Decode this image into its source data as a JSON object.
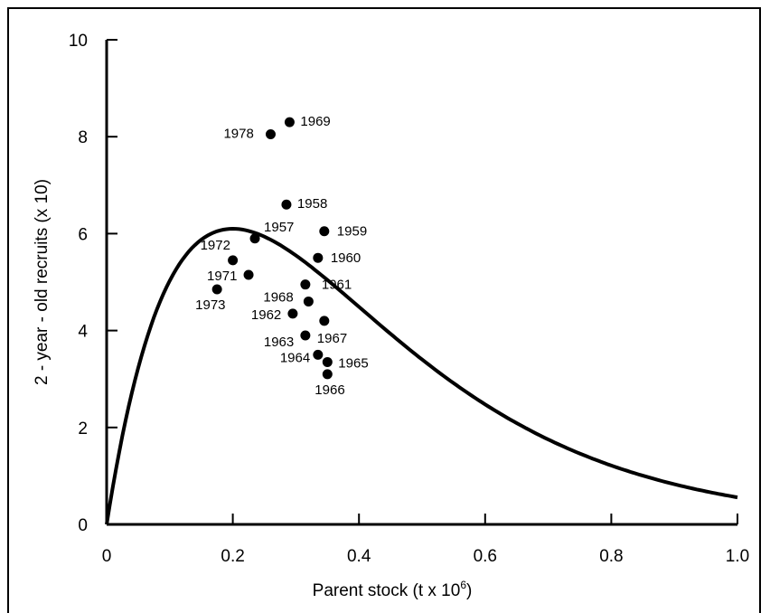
{
  "chart_data": {
    "type": "scatter",
    "xlabel": "Parent stock (t x 10",
    "xlabel_sup": "6",
    "xlabel_close": ")",
    "ylabel": "2 - year - old recruits (x 10)",
    "xlim": [
      0,
      1.0
    ],
    "ylim": [
      0,
      10
    ],
    "x_ticks": [
      "0",
      "0.2",
      "0.4",
      "0.6",
      "0.8",
      "1.0"
    ],
    "x_tick_values": [
      0,
      0.2,
      0.4,
      0.6,
      0.8,
      1.0
    ],
    "y_ticks": [
      "0",
      "2",
      "4",
      "6",
      "8",
      "10"
    ],
    "y_tick_values": [
      0,
      2,
      4,
      6,
      8,
      10
    ],
    "grid": false,
    "points": [
      {
        "label": "1978",
        "x": 0.26,
        "y": 8.05
      },
      {
        "label": "1969",
        "x": 0.29,
        "y": 8.3
      },
      {
        "label": "1958",
        "x": 0.285,
        "y": 6.6
      },
      {
        "label": "1957",
        "x": 0.235,
        "y": 5.9
      },
      {
        "label": "1959",
        "x": 0.345,
        "y": 6.05
      },
      {
        "label": "1972",
        "x": 0.2,
        "y": 5.45
      },
      {
        "label": "1960",
        "x": 0.335,
        "y": 5.5
      },
      {
        "label": "1971",
        "x": 0.225,
        "y": 5.15
      },
      {
        "label": "1961",
        "x": 0.315,
        "y": 4.95
      },
      {
        "label": "1973",
        "x": 0.175,
        "y": 4.85
      },
      {
        "label": "1968",
        "x": 0.32,
        "y": 4.6
      },
      {
        "label": "1962",
        "x": 0.295,
        "y": 4.35
      },
      {
        "label": "1967",
        "x": 0.345,
        "y": 4.2
      },
      {
        "label": "1963",
        "x": 0.315,
        "y": 3.9
      },
      {
        "label": "1964",
        "x": 0.335,
        "y": 3.5
      },
      {
        "label": "1965",
        "x": 0.35,
        "y": 3.35
      },
      {
        "label": "1966",
        "x": 0.35,
        "y": 3.1
      }
    ],
    "curve": {
      "description_type": "ricker",
      "peak_x": 0.2,
      "peak_y": 6.1
    }
  }
}
